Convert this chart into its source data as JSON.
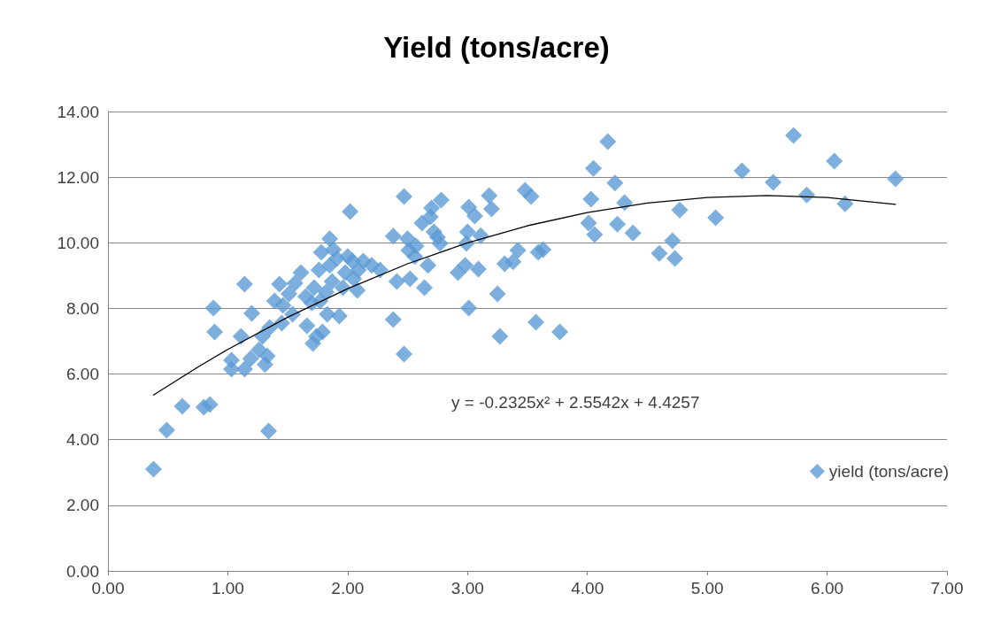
{
  "chart_data": {
    "type": "scatter",
    "title": "Yield (tons/acre)",
    "x": [
      0.38,
      0.49,
      0.62,
      0.8,
      0.85,
      0.88,
      0.89,
      1.14,
      1.03,
      1.03,
      1.11,
      1.14,
      1.19,
      1.2,
      1.26,
      1.29,
      1.31,
      1.33,
      1.34,
      1.35,
      1.39,
      1.43,
      1.45,
      1.46,
      1.51,
      1.54,
      1.56,
      1.61,
      1.65,
      1.66,
      1.7,
      1.71,
      1.72,
      1.74,
      1.76,
      1.77,
      1.78,
      1.79,
      1.82,
      1.83,
      1.85,
      1.85,
      1.87,
      1.88,
      1.91,
      1.93,
      1.96,
      1.98,
      2.0,
      2.02,
      2.04,
      2.05,
      2.08,
      2.09,
      2.13,
      2.2,
      2.27,
      2.38,
      2.38,
      2.41,
      2.47,
      2.47,
      2.5,
      2.51,
      2.52,
      2.56,
      2.57,
      2.62,
      2.64,
      2.67,
      2.69,
      2.7,
      2.72,
      2.75,
      2.77,
      2.78,
      2.92,
      2.98,
      2.99,
      3.0,
      3.01,
      3.01,
      3.06,
      3.09,
      3.11,
      3.18,
      3.2,
      3.25,
      3.27,
      3.31,
      3.38,
      3.42,
      3.48,
      3.53,
      3.57,
      3.59,
      3.63,
      3.77,
      4.01,
      4.03,
      4.05,
      4.06,
      4.17,
      4.23,
      4.25,
      4.31,
      4.38,
      4.6,
      4.71,
      4.73,
      4.77,
      5.07,
      5.29,
      5.55,
      5.72,
      5.83,
      6.06,
      6.15,
      6.57
    ],
    "series": [
      {
        "name": "yield (tons/acre)",
        "color": "#5b9bd5",
        "values": [
          3.1,
          4.29,
          5.02,
          4.99,
          5.07,
          8.01,
          7.28,
          8.74,
          6.42,
          6.15,
          7.15,
          6.15,
          6.47,
          7.85,
          6.74,
          7.15,
          6.29,
          6.55,
          4.26,
          7.42,
          8.23,
          8.74,
          7.55,
          8.09,
          8.44,
          7.82,
          8.77,
          9.09,
          8.36,
          7.47,
          8.17,
          6.93,
          8.63,
          7.15,
          9.17,
          8.23,
          9.71,
          7.28,
          8.5,
          7.82,
          9.31,
          10.12,
          8.82,
          9.79,
          9.52,
          7.77,
          8.63,
          9.09,
          9.58,
          10.95,
          9.44,
          8.9,
          8.55,
          9.17,
          9.44,
          9.31,
          9.17,
          7.66,
          10.2,
          8.82,
          6.61,
          11.41,
          10.12,
          9.77,
          8.9,
          9.58,
          9.9,
          10.6,
          8.63,
          9.31,
          10.79,
          11.06,
          10.33,
          10.17,
          9.98,
          11.3,
          9.09,
          9.31,
          9.98,
          10.33,
          8.01,
          11.09,
          10.82,
          9.2,
          10.22,
          11.44,
          11.03,
          8.44,
          7.15,
          9.36,
          9.42,
          9.77,
          11.6,
          11.41,
          7.58,
          9.71,
          9.79,
          7.28,
          10.6,
          11.33,
          12.27,
          10.25,
          13.08,
          11.82,
          10.57,
          11.22,
          10.3,
          9.68,
          10.06,
          9.52,
          11.0,
          10.76,
          12.19,
          11.84,
          13.27,
          11.46,
          12.49,
          11.19,
          11.95
        ]
      },
      {
        "type": "line",
        "color": "#000000",
        "marker": "none",
        "line_style": "solid",
        "x": [
          0.38,
          0.75,
          1.0,
          1.5,
          2.0,
          2.5,
          3.0,
          3.5,
          4.0,
          4.5,
          5.0,
          5.5,
          6.0,
          6.57
        ],
        "values": [
          5.36,
          6.21,
          6.75,
          7.73,
          8.6,
          9.36,
          10.0,
          10.52,
          10.92,
          11.21,
          11.38,
          11.44,
          11.38,
          11.17
        ]
      }
    ],
    "annotations": [
      "y = -0.2325x² + 2.5542x + 4.4257"
    ],
    "xlim": [
      0,
      7
    ],
    "xticks": [
      {
        "value": 0,
        "label": "0.00"
      },
      {
        "value": 1,
        "label": "1.00"
      },
      {
        "value": 2,
        "label": "2.00"
      },
      {
        "value": 3,
        "label": "3.00"
      },
      {
        "value": 4,
        "label": "4.00"
      },
      {
        "value": 5,
        "label": "5.00"
      },
      {
        "value": 6,
        "label": "6.00"
      },
      {
        "value": 7,
        "label": "7.00"
      }
    ],
    "ylim": [
      0,
      14
    ],
    "yticks": [
      {
        "value": 0,
        "label": "0.00"
      },
      {
        "value": 2,
        "label": "2.00"
      },
      {
        "value": 4,
        "label": "4.00"
      },
      {
        "value": 6,
        "label": "6.00"
      },
      {
        "value": 8,
        "label": "8.00"
      },
      {
        "value": 10,
        "label": "10.00"
      },
      {
        "value": 12,
        "label": "12.00"
      },
      {
        "value": 14,
        "label": "14.00"
      }
    ],
    "grid": "y",
    "legend": "right",
    "marker": "diamond"
  }
}
